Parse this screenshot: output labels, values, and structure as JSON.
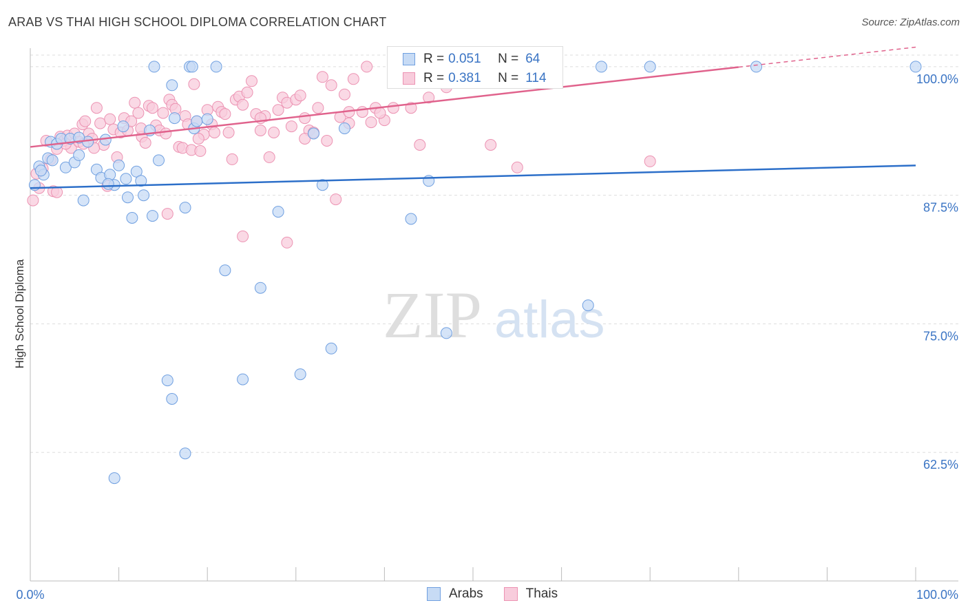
{
  "title": "ARAB VS THAI HIGH SCHOOL DIPLOMA CORRELATION CHART",
  "source": "Source: ZipAtlas.com",
  "watermark": {
    "zip": "ZIP",
    "atlas": "atlas"
  },
  "colors": {
    "arabs_fill": "#c7dbf5",
    "arabs_stroke": "#6f9fe0",
    "arabs_line": "#2c6fc9",
    "thais_fill": "#f8ccdc",
    "thais_stroke": "#ec92b2",
    "thais_line": "#e0628c",
    "tick_label": "#3a74c4",
    "grid": "#dddddd"
  },
  "legend": {
    "rows": [
      {
        "r_label": "R =",
        "r_value": "0.051",
        "n_label": "N =",
        "n_value": "64"
      },
      {
        "r_label": "R =",
        "r_value": "0.381",
        "n_label": "N =",
        "n_value": "114"
      }
    ]
  },
  "bottom_legend": {
    "arabs": "Arabs",
    "thais": "Thais"
  },
  "chart_data": {
    "type": "scatter",
    "title": "ARAB VS THAI HIGH SCHOOL DIPLOMA CORRELATION CHART",
    "xlabel": "",
    "ylabel": "High School Diploma",
    "xlim": [
      0,
      100
    ],
    "ylim": [
      50,
      101.8
    ],
    "x_tick_labels": [
      "0.0%",
      "100.0%"
    ],
    "y_ticks": [
      62.5,
      75.0,
      87.5,
      100.0
    ],
    "y_tick_labels": [
      "62.5%",
      "75.0%",
      "87.5%",
      "100.0%"
    ],
    "grid": true,
    "series": [
      {
        "name": "Arabs",
        "r": 0.051,
        "n": 64,
        "trend": {
          "x": [
            0,
            100
          ],
          "y": [
            88.2,
            90.4
          ],
          "solid_until": 100
        },
        "points": [
          [
            0.5,
            88.5
          ],
          [
            1.0,
            90.3
          ],
          [
            1.5,
            89.5
          ],
          [
            2.0,
            91.1
          ],
          [
            2.3,
            92.7
          ],
          [
            2.5,
            90.9
          ],
          [
            3.0,
            92.5
          ],
          [
            3.5,
            93.0
          ],
          [
            4.0,
            90.2
          ],
          [
            4.5,
            93.0
          ],
          [
            5.0,
            90.7
          ],
          [
            5.5,
            91.4
          ],
          [
            6.0,
            87.0
          ],
          [
            6.5,
            92.7
          ],
          [
            7.5,
            90.0
          ],
          [
            8.0,
            89.2
          ],
          [
            8.5,
            92.9
          ],
          [
            9.0,
            89.5
          ],
          [
            9.5,
            88.5
          ],
          [
            10.0,
            90.4
          ],
          [
            10.5,
            94.2
          ],
          [
            10.8,
            89.1
          ],
          [
            11.0,
            87.3
          ],
          [
            11.5,
            85.3
          ],
          [
            12.0,
            89.8
          ],
          [
            12.5,
            88.9
          ],
          [
            12.8,
            87.5
          ],
          [
            13.5,
            93.8
          ],
          [
            13.8,
            85.5
          ],
          [
            14.0,
            100.0
          ],
          [
            14.5,
            90.9
          ],
          [
            16.0,
            98.2
          ],
          [
            16.3,
            95.0
          ],
          [
            17.5,
            86.3
          ],
          [
            18.0,
            100.0
          ],
          [
            18.3,
            100.0
          ],
          [
            18.5,
            94.0
          ],
          [
            18.8,
            94.7
          ],
          [
            20.0,
            94.9
          ],
          [
            21.0,
            100.0
          ],
          [
            22.0,
            80.2
          ],
          [
            24.0,
            69.6
          ],
          [
            15.5,
            69.5
          ],
          [
            16.0,
            67.7
          ],
          [
            17.5,
            62.4
          ],
          [
            9.5,
            60.0
          ],
          [
            26.0,
            78.5
          ],
          [
            28.0,
            85.9
          ],
          [
            30.5,
            70.1
          ],
          [
            32.0,
            93.5
          ],
          [
            33.0,
            88.5
          ],
          [
            34.0,
            72.6
          ],
          [
            35.5,
            94.0
          ],
          [
            43.0,
            85.2
          ],
          [
            45.0,
            88.9
          ],
          [
            47.0,
            74.1
          ],
          [
            63.0,
            76.8
          ],
          [
            64.5,
            100.0
          ],
          [
            70.0,
            100.0
          ],
          [
            82.0,
            100.0
          ],
          [
            100.0,
            100.0
          ],
          [
            1.2,
            89.9
          ],
          [
            5.5,
            93.1
          ],
          [
            8.8,
            88.6
          ]
        ]
      },
      {
        "name": "Thais",
        "r": 0.381,
        "n": 114,
        "trend": {
          "x": [
            0,
            100
          ],
          "y": [
            92.2,
            101.9
          ],
          "solid_until": 80
        },
        "points": [
          [
            0.3,
            87.0
          ],
          [
            0.7,
            89.6
          ],
          [
            1.0,
            88.2
          ],
          [
            1.4,
            90.1
          ],
          [
            1.8,
            92.8
          ],
          [
            2.3,
            91.0
          ],
          [
            2.6,
            87.9
          ],
          [
            3.0,
            92.0
          ],
          [
            3.4,
            93.2
          ],
          [
            3.8,
            92.8
          ],
          [
            4.2,
            93.3
          ],
          [
            4.6,
            92.1
          ],
          [
            5.0,
            93.5
          ],
          [
            5.5,
            92.7
          ],
          [
            5.9,
            94.4
          ],
          [
            6.2,
            94.7
          ],
          [
            6.6,
            93.5
          ],
          [
            7.0,
            93.0
          ],
          [
            7.5,
            96.0
          ],
          [
            7.9,
            94.5
          ],
          [
            8.3,
            92.4
          ],
          [
            8.7,
            88.4
          ],
          [
            9.0,
            94.9
          ],
          [
            9.4,
            93.9
          ],
          [
            9.8,
            91.2
          ],
          [
            10.2,
            93.6
          ],
          [
            10.6,
            95.0
          ],
          [
            11.0,
            93.8
          ],
          [
            11.4,
            94.7
          ],
          [
            11.8,
            96.5
          ],
          [
            12.2,
            95.5
          ],
          [
            12.6,
            93.2
          ],
          [
            13.0,
            92.6
          ],
          [
            13.4,
            96.2
          ],
          [
            13.8,
            96.0
          ],
          [
            14.2,
            94.3
          ],
          [
            14.6,
            93.8
          ],
          [
            15.0,
            95.5
          ],
          [
            15.3,
            93.5
          ],
          [
            15.7,
            96.8
          ],
          [
            16.0,
            96.3
          ],
          [
            16.4,
            95.9
          ],
          [
            16.8,
            92.2
          ],
          [
            17.2,
            92.1
          ],
          [
            17.5,
            95.2
          ],
          [
            17.8,
            94.4
          ],
          [
            18.2,
            91.9
          ],
          [
            18.5,
            98.3
          ],
          [
            18.8,
            94.7
          ],
          [
            19.2,
            91.8
          ],
          [
            19.6,
            93.4
          ],
          [
            20.0,
            95.8
          ],
          [
            20.5,
            94.4
          ],
          [
            20.8,
            93.6
          ],
          [
            21.2,
            96.1
          ],
          [
            21.6,
            95.6
          ],
          [
            22.0,
            95.4
          ],
          [
            22.4,
            93.6
          ],
          [
            22.8,
            91.0
          ],
          [
            23.2,
            96.8
          ],
          [
            23.6,
            97.1
          ],
          [
            24.0,
            96.3
          ],
          [
            24.5,
            97.5
          ],
          [
            25.0,
            98.6
          ],
          [
            25.5,
            95.4
          ],
          [
            26.0,
            93.8
          ],
          [
            26.5,
            95.2
          ],
          [
            27.0,
            91.2
          ],
          [
            27.5,
            93.6
          ],
          [
            28.0,
            95.8
          ],
          [
            28.5,
            97.0
          ],
          [
            29.0,
            96.5
          ],
          [
            29.5,
            94.2
          ],
          [
            30.0,
            96.8
          ],
          [
            30.5,
            97.2
          ],
          [
            31.0,
            95.0
          ],
          [
            31.5,
            93.8
          ],
          [
            32.0,
            93.6
          ],
          [
            32.5,
            96.0
          ],
          [
            33.0,
            99.0
          ],
          [
            33.5,
            92.8
          ],
          [
            34.0,
            98.2
          ],
          [
            34.5,
            87.1
          ],
          [
            35.0,
            95.1
          ],
          [
            35.5,
            97.3
          ],
          [
            36.0,
            95.6
          ],
          [
            36.5,
            98.8
          ],
          [
            37.5,
            95.6
          ],
          [
            38.0,
            100.0
          ],
          [
            38.5,
            94.6
          ],
          [
            39.0,
            96.0
          ],
          [
            40.0,
            94.8
          ],
          [
            42.0,
            100.0
          ],
          [
            43.0,
            96.0
          ],
          [
            44.0,
            92.4
          ],
          [
            45.0,
            97.0
          ],
          [
            47.0,
            98.0
          ],
          [
            52.0,
            92.4
          ],
          [
            55.0,
            90.2
          ],
          [
            70.0,
            90.8
          ],
          [
            3.0,
            87.8
          ],
          [
            4.0,
            92.5
          ],
          [
            6.0,
            92.5
          ],
          [
            7.2,
            92.1
          ],
          [
            15.5,
            85.7
          ],
          [
            24.0,
            83.5
          ],
          [
            29.0,
            82.9
          ],
          [
            12.5,
            94.0
          ],
          [
            19.0,
            93.0
          ],
          [
            26.0,
            95.0
          ],
          [
            31.0,
            93.0
          ],
          [
            36.0,
            94.5
          ],
          [
            39.5,
            95.5
          ],
          [
            41.0,
            96.0
          ]
        ]
      }
    ]
  }
}
